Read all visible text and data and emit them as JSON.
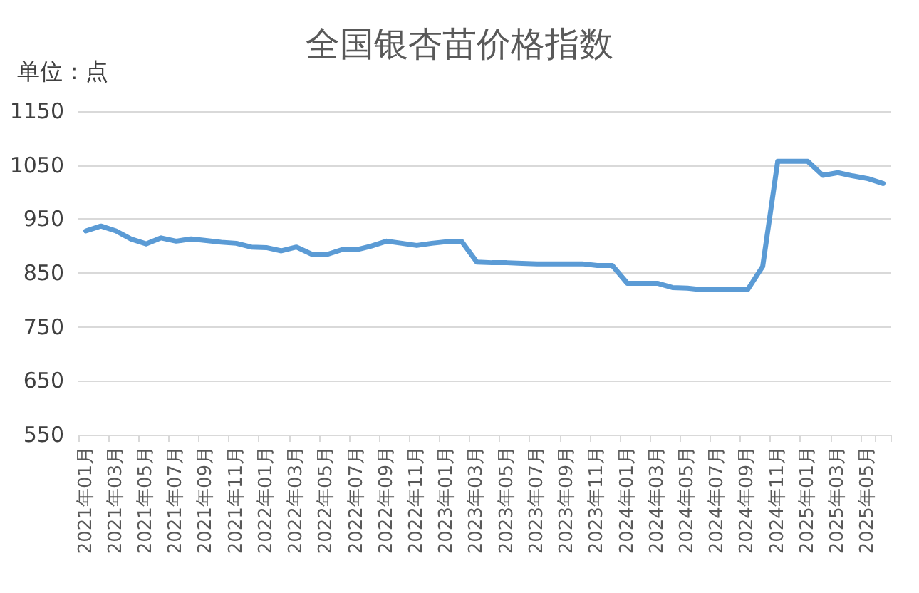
{
  "chart_data": {
    "type": "line",
    "title": "全国银杏苗价格指数",
    "ylabel": "单位：点",
    "categories": [
      "2021年01月",
      null,
      "2021年03月",
      null,
      "2021年05月",
      null,
      "2021年07月",
      null,
      "2021年09月",
      null,
      "2021年11月",
      null,
      "2022年01月",
      null,
      "2022年03月",
      null,
      "2022年05月",
      null,
      "2022年07月",
      null,
      "2022年09月",
      null,
      "2022年11月",
      null,
      "2023年01月",
      null,
      "2023年03月",
      null,
      "2023年05月",
      null,
      "2023年07月",
      null,
      "2023年09月",
      null,
      "2023年11月",
      null,
      "2024年01月",
      null,
      "2024年03月",
      null,
      "2024年05月",
      null,
      "2024年07月",
      null,
      "2024年09月",
      null,
      "2024年11月",
      null,
      "2025年01月",
      null,
      "2025年03月",
      null,
      "2025年05月",
      null
    ],
    "series": [
      {
        "color": "#5b9bd5",
        "values": [
          928,
          937,
          928,
          913,
          904,
          915,
          909,
          913,
          910,
          907,
          905,
          898,
          897,
          891,
          898,
          885,
          884,
          893,
          893,
          900,
          909,
          905,
          901,
          905,
          908,
          908,
          870,
          869,
          869,
          868,
          867,
          867,
          867,
          867,
          864,
          864,
          831,
          831,
          831,
          823,
          822,
          819,
          819,
          819,
          819,
          862,
          1057,
          1057,
          1057,
          1031,
          1036,
          1030,
          1025,
          1016
        ]
      }
    ],
    "ylim": [
      550,
      1150
    ],
    "yticks": [
      550,
      650,
      750,
      850,
      950,
      1050,
      1150
    ],
    "grid": "y",
    "marker": "none",
    "line_style": "solid"
  }
}
